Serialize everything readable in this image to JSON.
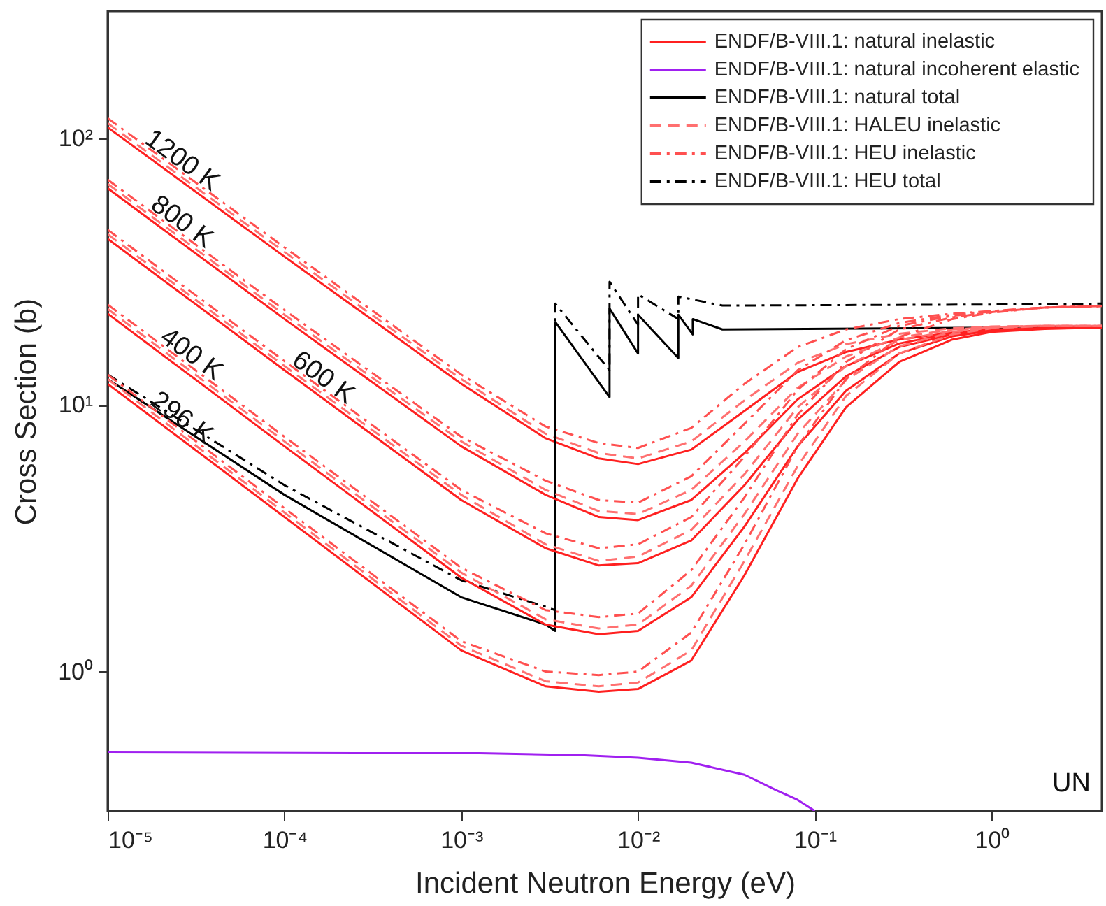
{
  "chart_data": {
    "type": "line",
    "xlabel": "Incident Neutron Energy (eV)",
    "ylabel": "Cross Section (b)",
    "log": "xy",
    "grid": false,
    "legend": "top right",
    "xlim": [
      1e-05,
      4.2
    ],
    "ylim": [
      0.3,
      300
    ],
    "xticks": [
      {
        "value": 1e-05,
        "label": "10⁻⁵"
      },
      {
        "value": 0.0001,
        "label": "10⁻⁴"
      },
      {
        "value": 0.001,
        "label": "10⁻³"
      },
      {
        "value": 0.01,
        "label": "10⁻²"
      },
      {
        "value": 0.1,
        "label": "10⁻¹"
      },
      {
        "value": 1,
        "label": "10⁰"
      }
    ],
    "yticks": [
      {
        "value": 1,
        "label": "10⁰"
      },
      {
        "value": 10,
        "label": "10¹"
      },
      {
        "value": 100,
        "label": "10²"
      }
    ],
    "x": [
      1e-05,
      0.0001,
      0.001,
      0.003,
      0.006,
      0.01,
      0.02,
      0.04,
      0.08,
      0.15,
      0.3,
      0.6,
      1,
      2,
      4.2
    ],
    "series": [
      {
        "name": "ENDF/B-VIII.1: natural inelastic",
        "color": "#ff2020",
        "line_style": "solid",
        "values": [
          110,
          36,
          12,
          7.5,
          6.3,
          6.0,
          6.8,
          9.5,
          13.3,
          15.8,
          17.6,
          18.7,
          19.2,
          19.4,
          19.5
        ]
      },
      {
        "name": "ENDF/B-VIII.1: natural incoherent elastic",
        "color": "#a020f0",
        "line_style": "solid",
        "x": [
          1e-05,
          0.001,
          0.005,
          0.01,
          0.02,
          0.04,
          0.06,
          0.08,
          0.1
        ],
        "values": [
          0.5,
          0.495,
          0.485,
          0.475,
          0.455,
          0.41,
          0.36,
          0.33,
          0.3
        ]
      },
      {
        "name": "ENDF/B-VIII.1: natural total",
        "color": "#000000",
        "line_style": "solid",
        "x": [
          1e-05,
          0.0001,
          0.001,
          0.003,
          0.0034,
          0.0034,
          0.0069,
          0.0069,
          0.01,
          0.01,
          0.0169,
          0.0169,
          0.0204,
          0.0204,
          0.03,
          1,
          4.2
        ],
        "values": [
          12.5,
          4.6,
          1.9,
          1.5,
          1.42,
          20.5,
          10.7,
          23,
          15.6,
          21.8,
          15.0,
          21.8,
          18.4,
          21,
          19.2,
          19.5,
          19.7
        ]
      },
      {
        "name": "ENDF/B-VIII.1: HALEU inelastic",
        "color": "#ff7070",
        "line_style": "dashed",
        "values": [
          114,
          37.5,
          12.5,
          7.8,
          6.6,
          6.3,
          7.3,
          10.4,
          14.4,
          16.9,
          18.5,
          19.4,
          19.7,
          19.8,
          19.8
        ]
      },
      {
        "name": "ENDF/B-VIII.1: HEU inelastic",
        "color": "#ff5050",
        "line_style": "dashdot",
        "values": [
          119,
          39,
          13,
          8.3,
          7.2,
          6.9,
          8.2,
          12,
          16.5,
          19.2,
          21,
          22,
          22.5,
          23.2,
          23.5
        ]
      },
      {
        "name": "ENDF/B-VIII.1: HEU total",
        "color": "#000000",
        "line_style": "dashdot",
        "x": [
          1e-05,
          0.0001,
          0.001,
          0.003,
          0.0034,
          0.0034,
          0.0069,
          0.0069,
          0.01,
          0.01,
          0.0169,
          0.0169,
          0.03,
          1,
          4.2
        ],
        "values": [
          13,
          5,
          2.2,
          1.75,
          1.7,
          24,
          13.5,
          29,
          20,
          26,
          21,
          25.5,
          23.6,
          23.8,
          24
        ]
      },
      {
        "color": "#ff2020",
        "line_style": "solid",
        "values": [
          65,
          21,
          7.0,
          4.6,
          3.8,
          3.7,
          4.4,
          6.6,
          10.5,
          14,
          17,
          18.6,
          19.2,
          19.4,
          19.5
        ]
      },
      {
        "color": "#ff2020",
        "line_style": "solid",
        "values": [
          42,
          13.5,
          4.4,
          2.9,
          2.5,
          2.55,
          3.1,
          5.0,
          8.8,
          12.8,
          16.5,
          18.4,
          19.1,
          19.4,
          19.5
        ]
      },
      {
        "color": "#ff2020",
        "line_style": "solid",
        "values": [
          22,
          7.0,
          2.25,
          1.5,
          1.38,
          1.42,
          1.9,
          3.5,
          7.0,
          11.3,
          15.6,
          18.1,
          19,
          19.4,
          19.5
        ]
      },
      {
        "color": "#ff2020",
        "line_style": "solid",
        "values": [
          12,
          3.8,
          1.2,
          0.88,
          0.84,
          0.86,
          1.1,
          2.3,
          5.3,
          9.8,
          14.5,
          17.6,
          18.8,
          19.3,
          19.5
        ]
      },
      {
        "color": "#ff7070",
        "line_style": "dashed",
        "values": [
          67.5,
          21.8,
          7.3,
          4.8,
          4.0,
          3.9,
          4.8,
          7.3,
          11.6,
          15.2,
          17.9,
          19.2,
          19.6,
          19.8,
          19.8
        ]
      },
      {
        "color": "#ff7070",
        "line_style": "dashed",
        "values": [
          43.7,
          14,
          4.6,
          3.0,
          2.6,
          2.7,
          3.4,
          5.5,
          9.8,
          14,
          17.5,
          19,
          19.6,
          19.8,
          19.8
        ]
      },
      {
        "color": "#ff7070",
        "line_style": "dashed",
        "values": [
          22.9,
          7.3,
          2.35,
          1.57,
          1.45,
          1.5,
          2.1,
          3.9,
          7.8,
          12.4,
          16.6,
          18.8,
          19.5,
          19.8,
          19.8
        ]
      },
      {
        "color": "#ff7070",
        "line_style": "dashed",
        "values": [
          12.5,
          3.95,
          1.25,
          0.92,
          0.88,
          0.91,
          1.2,
          2.6,
          5.9,
          10.8,
          15.6,
          18.4,
          19.4,
          19.8,
          19.8
        ]
      },
      {
        "color": "#ff5050",
        "line_style": "dashdot",
        "values": [
          70,
          22.7,
          7.6,
          5.2,
          4.4,
          4.3,
          5.4,
          8.5,
          13.5,
          17.5,
          20.3,
          21.8,
          22.5,
          23.2,
          23.5
        ]
      },
      {
        "color": "#ff5050",
        "line_style": "dashdot",
        "values": [
          45.4,
          14.6,
          4.8,
          3.3,
          2.9,
          3.0,
          3.8,
          6.4,
          11.4,
          16.2,
          19.8,
          21.6,
          22.4,
          23.2,
          23.5
        ]
      },
      {
        "color": "#ff5050",
        "line_style": "dashdot",
        "values": [
          23.8,
          7.6,
          2.45,
          1.7,
          1.6,
          1.65,
          2.4,
          4.5,
          9.2,
          14.5,
          19.2,
          21.3,
          22.3,
          23.2,
          23.5
        ]
      },
      {
        "color": "#ff5050",
        "line_style": "dashdot",
        "values": [
          13,
          4.1,
          1.3,
          1.0,
          0.97,
          1.0,
          1.4,
          3.0,
          7.0,
          12.5,
          18,
          21,
          22.2,
          23.2,
          23.5
        ]
      }
    ],
    "annotations": [
      {
        "text": "1200 K",
        "x": 2.3e-05,
        "y": 73
      },
      {
        "text": "800 K",
        "x": 2.3e-05,
        "y": 43
      },
      {
        "text": "600 K",
        "x": 0.000145,
        "y": 11.2
      },
      {
        "text": "400 K",
        "x": 2.6e-05,
        "y": 13.7
      },
      {
        "text": "296 K",
        "x": 2.3e-05,
        "y": 7.9
      },
      "UN"
    ]
  }
}
